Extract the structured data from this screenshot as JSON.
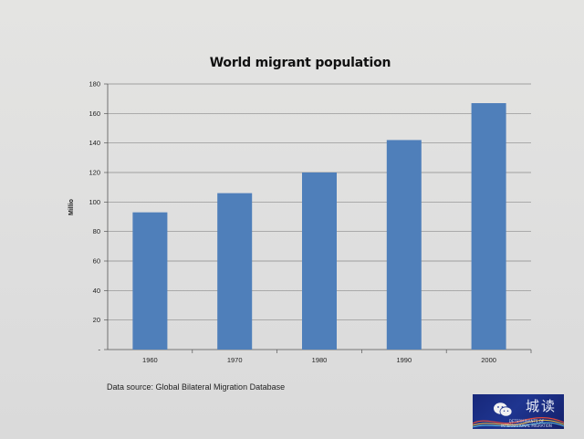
{
  "slide": {
    "source_note": "Data source: Global Bilateral Migration Database",
    "logo": {
      "brand_text": "城读",
      "caption": "DETERMINANTS OF INTERNATIONAL MIGRATION",
      "icon": "wechat-icon"
    }
  },
  "colors": {
    "bar": "#4f7fba",
    "gridline": "#8a8a8a",
    "background": "#e0e0df"
  },
  "chart_data": {
    "type": "bar",
    "title": "World migrant population",
    "ylabel": "Millio",
    "xlabel": "",
    "categories": [
      "1960",
      "1970",
      "1980",
      "1990",
      "2000"
    ],
    "values": [
      93,
      106,
      120,
      142,
      167
    ],
    "ylim": [
      0,
      180
    ],
    "yticks": [
      "-",
      "20",
      "40",
      "60",
      "80",
      "100",
      "120",
      "140",
      "160",
      "180"
    ],
    "grid": true,
    "legend": "none"
  }
}
